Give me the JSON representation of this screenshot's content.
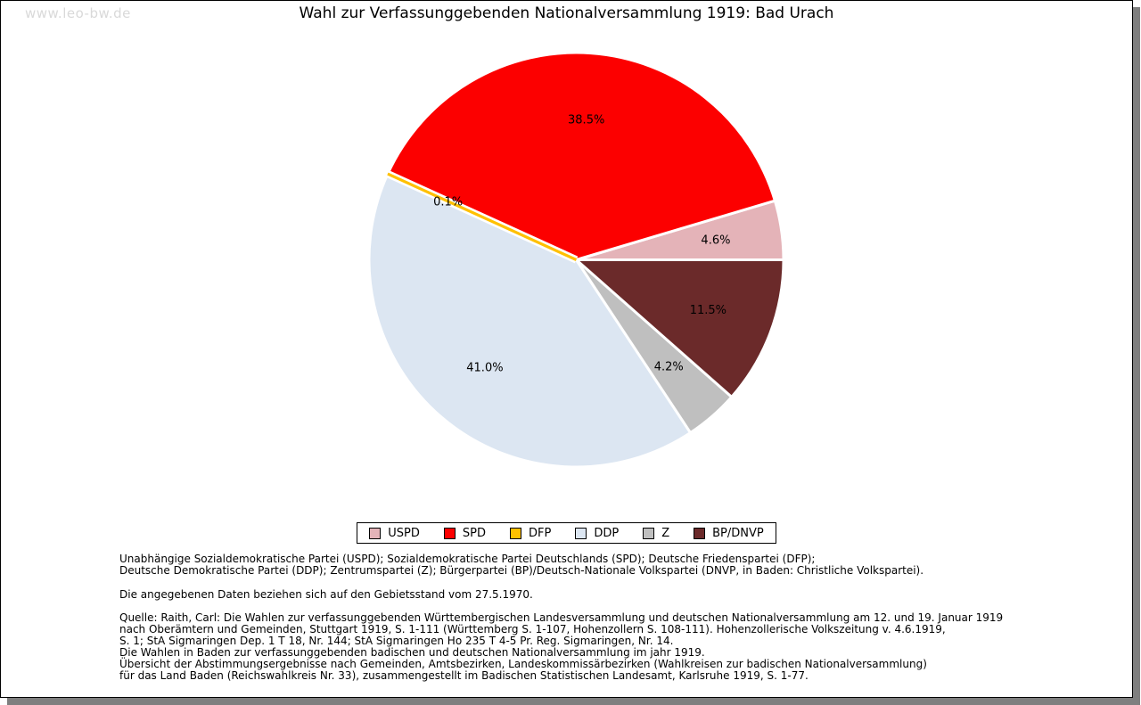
{
  "watermark": "www.leo-bw.de",
  "title": "Wahl zur Verfassunggebenden Nationalversammlung 1919: Bad Urach",
  "chart_data": {
    "type": "pie",
    "title": "Wahl zur Verfassunggebenden Nationalversammlung 1919: Bad Urach",
    "start_angle_deg": 0,
    "direction": "counterclockwise",
    "legend_position": "bottom",
    "slices": [
      {
        "label": "USPD",
        "value": 4.6,
        "pct_label": "4.6%",
        "color": "#e4b3b8"
      },
      {
        "label": "SPD",
        "value": 38.5,
        "pct_label": "38.5%",
        "color": "#fc0000"
      },
      {
        "label": "DFP",
        "value": 0.1,
        "pct_label": "0.1%",
        "color": "#ffc000"
      },
      {
        "label": "DDP",
        "value": 41.0,
        "pct_label": "41.0%",
        "color": "#dce6f2"
      },
      {
        "label": "Z",
        "value": 4.2,
        "pct_label": "4.2%",
        "color": "#bfbfbf"
      },
      {
        "label": "BP/DNVP",
        "value": 11.5,
        "pct_label": "11.5%",
        "color": "#6b2a2a"
      }
    ]
  },
  "notes": {
    "parties_line1": "Unabhängige Sozialdemokratische Partei (USPD); Sozialdemokratische Partei Deutschlands (SPD); Deutsche Friedenspartei (DFP);",
    "parties_line2": "Deutsche Demokratische Partei (DDP); Zentrumspartei (Z); Bürgerpartei (BP)/Deutsch-Nationale Volkspartei (DNVP, in Baden: Christliche Volkspartei).",
    "data_note": "Die angegebenen Daten beziehen sich auf den Gebietsstand vom 27.5.1970.",
    "source_lines": [
      "Quelle: Raith, Carl: Die Wahlen zur verfassunggebenden Württembergischen Landesversammlung und deutschen Nationalversammlung am 12. und 19. Januar 1919",
      "nach Oberämtern und Gemeinden, Stuttgart 1919, S. 1-111 (Württemberg S. 1-107, Hohenzollern S. 108-111). Hohenzollerische Volkszeitung v. 4.6.1919,",
      "S. 1; StA Sigmaringen Dep. 1 T 18, Nr. 144; StA Sigmaringen Ho 235 T 4-5 Pr. Reg. Sigmaringen, Nr. 14.",
      "Die Wahlen in Baden zur verfassunggebenden badischen und deutschen Nationalversammlung im jahr 1919.",
      "Übersicht der Abstimmungsergebnisse nach Gemeinden, Amtsbezirken, Landeskommissärbezirken (Wahlkreisen zur badischen Nationalversammlung)",
      "für das Land Baden (Reichswahlkreis Nr. 33), zusammengestellt im Badischen Statistischen Landesamt, Karlsruhe 1919, S. 1-77."
    ]
  }
}
